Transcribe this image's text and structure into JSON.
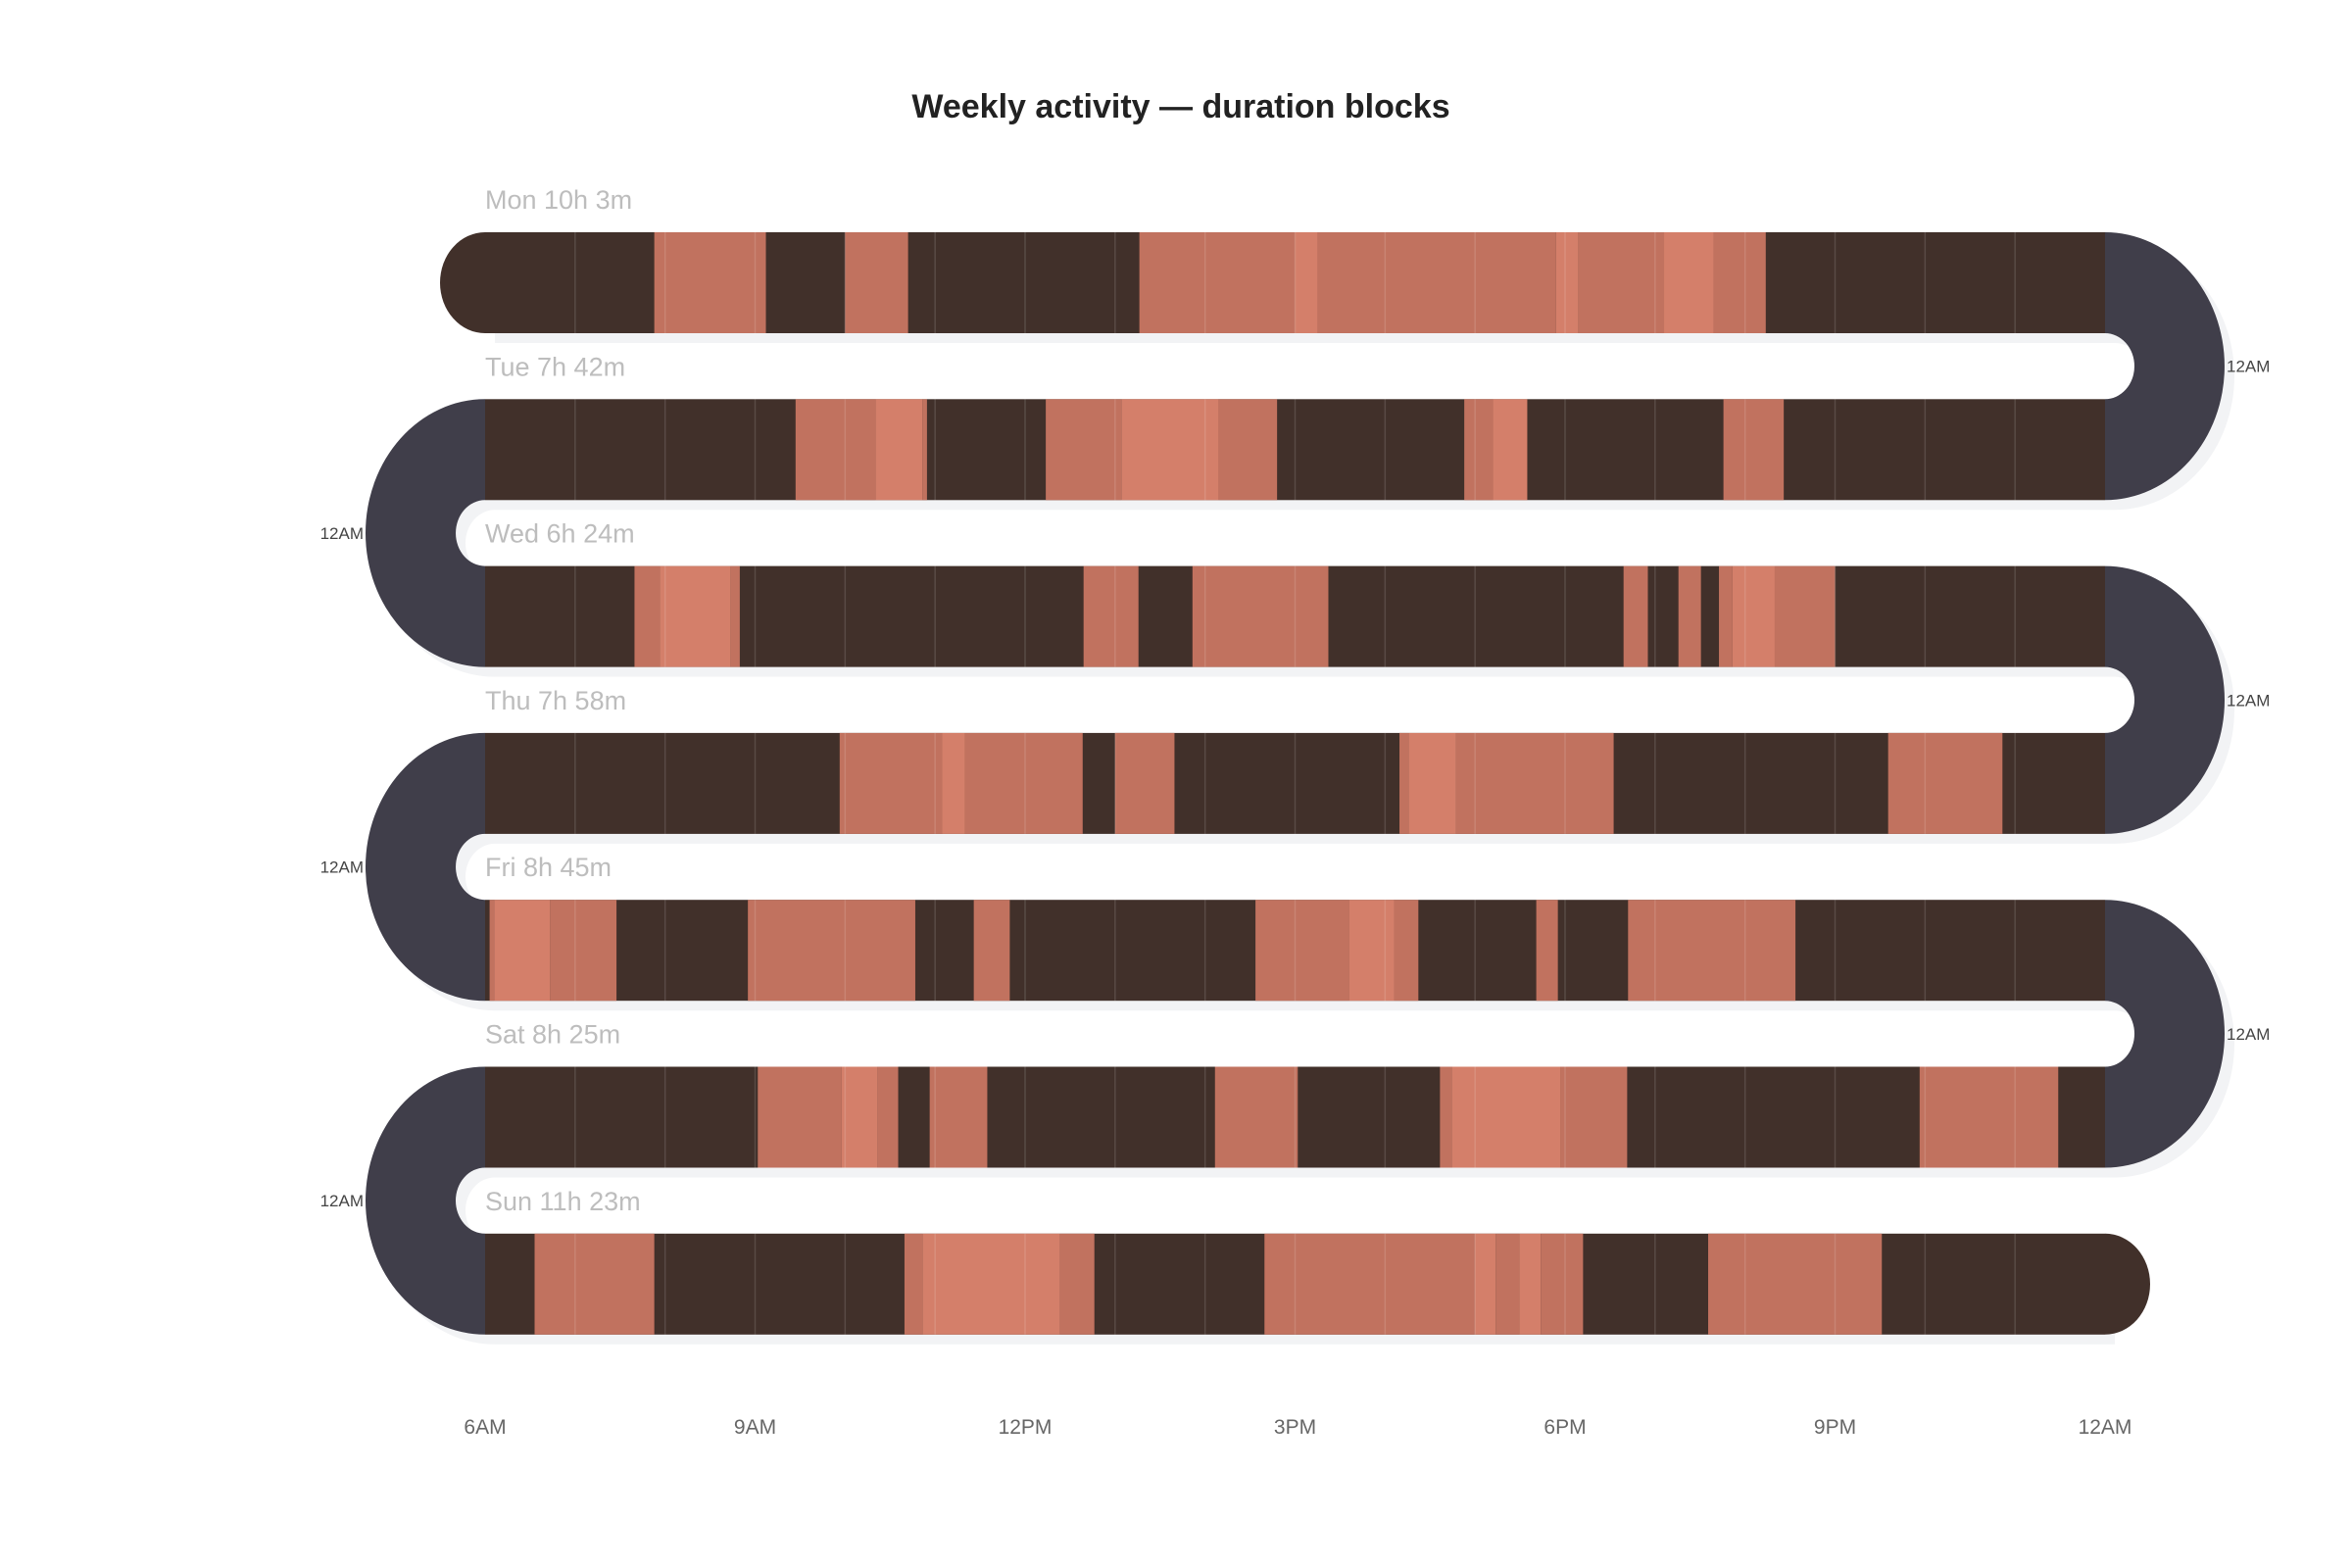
{
  "chart_data": {
    "type": "timeline",
    "title": "Weekly activity — duration blocks",
    "x_range_hours": [
      6,
      24
    ],
    "x_ticks": [
      {
        "hour": 6,
        "label": "6AM"
      },
      {
        "hour": 9,
        "label": "9AM"
      },
      {
        "hour": 12,
        "label": "12PM"
      },
      {
        "hour": 15,
        "label": "3PM"
      },
      {
        "hour": 18,
        "label": "6PM"
      },
      {
        "hour": 21,
        "label": "9PM"
      },
      {
        "hour": 24,
        "label": "12AM"
      }
    ],
    "turn_label": "12AM",
    "colors": {
      "base": "#41302a",
      "active": "#c1725f",
      "intense": "#d47f6a",
      "turn": "#403e4a",
      "shadow": "#f2f3f5"
    },
    "days": [
      {
        "label": "Mon 10h 3m",
        "blocks": [
          [
            7.88,
            9.12,
            "active"
          ],
          [
            10.0,
            10.7,
            "active"
          ],
          [
            13.27,
            15.0,
            "active"
          ],
          [
            15.0,
            15.25,
            "intense"
          ],
          [
            15.25,
            17.9,
            "active"
          ],
          [
            17.9,
            18.15,
            "intense"
          ],
          [
            18.15,
            19.1,
            "active"
          ],
          [
            19.1,
            19.65,
            "intense"
          ],
          [
            19.65,
            20.23,
            "active"
          ]
        ]
      },
      {
        "label": "Tue 7h 42m",
        "blocks": [
          [
            9.45,
            10.34,
            "active"
          ],
          [
            10.34,
            10.86,
            "intense"
          ],
          [
            10.86,
            10.91,
            "active"
          ],
          [
            12.23,
            13.07,
            "active"
          ],
          [
            13.07,
            14.15,
            "intense"
          ],
          [
            14.15,
            14.8,
            "active"
          ],
          [
            16.88,
            17.2,
            "active"
          ],
          [
            17.2,
            17.58,
            "intense"
          ],
          [
            19.76,
            20.43,
            "active"
          ]
        ]
      },
      {
        "label": "Wed 6h 24m",
        "blocks": [
          [
            7.66,
            7.94,
            "active"
          ],
          [
            7.94,
            8.73,
            "intense"
          ],
          [
            8.73,
            8.83,
            "active"
          ],
          [
            12.65,
            13.26,
            "active"
          ],
          [
            13.86,
            15.37,
            "active"
          ],
          [
            18.65,
            18.92,
            "active"
          ],
          [
            19.26,
            19.51,
            "active"
          ],
          [
            19.71,
            19.86,
            "active"
          ],
          [
            19.86,
            20.33,
            "intense"
          ],
          [
            20.33,
            21.0,
            "active"
          ]
        ]
      },
      {
        "label": "Thu 7h 58m",
        "blocks": [
          [
            9.94,
            11.08,
            "active"
          ],
          [
            11.08,
            11.33,
            "intense"
          ],
          [
            11.33,
            12.64,
            "active"
          ],
          [
            13.0,
            13.66,
            "active"
          ],
          [
            16.16,
            16.26,
            "active"
          ],
          [
            16.26,
            16.79,
            "intense"
          ],
          [
            16.79,
            18.54,
            "active"
          ],
          [
            21.59,
            22.86,
            "active"
          ]
        ]
      },
      {
        "label": "Fri 8h 45m",
        "blocks": [
          [
            6.05,
            6.1,
            "active"
          ],
          [
            6.1,
            6.72,
            "intense"
          ],
          [
            6.72,
            7.46,
            "active"
          ],
          [
            8.92,
            10.78,
            "active"
          ],
          [
            11.43,
            11.83,
            "active"
          ],
          [
            14.56,
            15.6,
            "active"
          ],
          [
            15.6,
            16.1,
            "intense"
          ],
          [
            16.1,
            16.37,
            "active"
          ],
          [
            17.68,
            17.92,
            "active"
          ],
          [
            18.7,
            20.56,
            "active"
          ]
        ]
      },
      {
        "label": "Sat 8h 25m",
        "blocks": [
          [
            9.03,
            9.96,
            "active"
          ],
          [
            9.96,
            10.36,
            "intense"
          ],
          [
            10.36,
            10.59,
            "active"
          ],
          [
            10.94,
            11.58,
            "active"
          ],
          [
            14.11,
            15.03,
            "active"
          ],
          [
            16.61,
            16.74,
            "active"
          ],
          [
            16.74,
            17.95,
            "intense"
          ],
          [
            17.95,
            18.69,
            "active"
          ],
          [
            21.94,
            23.48,
            "active"
          ]
        ]
      },
      {
        "label": "Sun 11h 23m",
        "blocks": [
          [
            6.55,
            7.88,
            "active"
          ],
          [
            10.66,
            10.86,
            "active"
          ],
          [
            10.86,
            12.39,
            "intense"
          ],
          [
            12.39,
            12.77,
            "active"
          ],
          [
            14.66,
            16.99,
            "active"
          ],
          [
            16.99,
            17.23,
            "intense"
          ],
          [
            17.23,
            17.49,
            "active"
          ],
          [
            17.49,
            17.73,
            "intense"
          ],
          [
            17.73,
            18.2,
            "active"
          ],
          [
            19.59,
            21.52,
            "active"
          ]
        ]
      }
    ]
  }
}
